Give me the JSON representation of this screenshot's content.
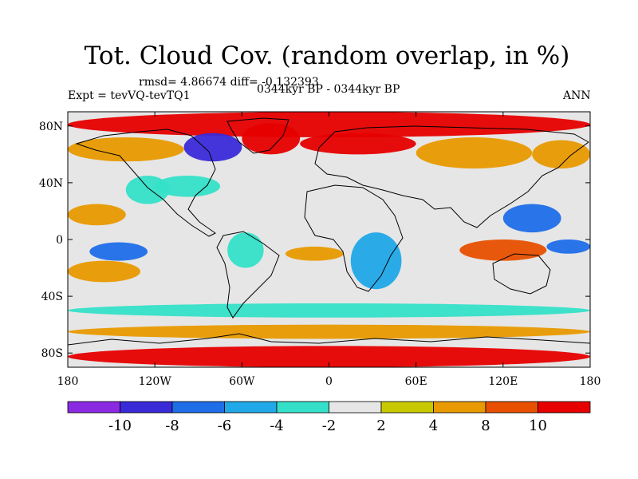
{
  "title": "Tot. Cloud Cov. (random overlap, in %)",
  "stats": "rmsd= 4.86674 diff= -0.132393",
  "expt": "Expt = tevVQ-tevTQ1",
  "period": "0344kyr BP - 0344kyr BP",
  "season": "ANN",
  "chart_data": {
    "type": "heatmap",
    "variable": "Total cloud cover difference (%)",
    "projection": "cylindrical equidistant",
    "xlim": [
      -180,
      180
    ],
    "ylim": [
      -90,
      90
    ],
    "x_ticks": [
      {
        "value": -180,
        "label": "180"
      },
      {
        "value": -120,
        "label": "120W"
      },
      {
        "value": -60,
        "label": "60W"
      },
      {
        "value": 0,
        "label": "0"
      },
      {
        "value": 60,
        "label": "60E"
      },
      {
        "value": 120,
        "label": "120E"
      },
      {
        "value": 180,
        "label": "180"
      }
    ],
    "y_ticks": [
      {
        "value": 80,
        "label": "80N"
      },
      {
        "value": 40,
        "label": "40N"
      },
      {
        "value": 0,
        "label": "0"
      },
      {
        "value": -40,
        "label": "40S"
      },
      {
        "value": -80,
        "label": "80S"
      }
    ],
    "colorbar": {
      "levels": [
        -10,
        -8,
        -6,
        -4,
        -2,
        2,
        4,
        8,
        10
      ],
      "colors": [
        "#8a2be2",
        "#3a2bd8",
        "#1f6ee8",
        "#20a8e8",
        "#35e0c8",
        "#e6e6e6",
        "#c8c800",
        "#e89a00",
        "#e85000",
        "#e60000"
      ]
    },
    "regions": [
      {
        "lon": [
          -180,
          180
        ],
        "lat": [
          72,
          90
        ],
        "value": 10
      },
      {
        "lon": [
          -180,
          -100
        ],
        "lat": [
          55,
          72
        ],
        "value": 6
      },
      {
        "lon": [
          -100,
          -60
        ],
        "lat": [
          55,
          75
        ],
        "value": -10
      },
      {
        "lon": [
          -60,
          -20
        ],
        "lat": [
          60,
          82
        ],
        "value": 10
      },
      {
        "lon": [
          -20,
          60
        ],
        "lat": [
          60,
          75
        ],
        "value": 10
      },
      {
        "lon": [
          60,
          140
        ],
        "lat": [
          50,
          72
        ],
        "value": 4
      },
      {
        "lon": [
          140,
          180
        ],
        "lat": [
          50,
          70
        ],
        "value": 6
      },
      {
        "lon": [
          -140,
          -110
        ],
        "lat": [
          25,
          45
        ],
        "value": -3
      },
      {
        "lon": [
          -120,
          -75
        ],
        "lat": [
          30,
          45
        ],
        "value": -3
      },
      {
        "lon": [
          -180,
          -140
        ],
        "lat": [
          10,
          25
        ],
        "value": 6
      },
      {
        "lon": [
          120,
          160
        ],
        "lat": [
          5,
          25
        ],
        "value": -8
      },
      {
        "lon": [
          -165,
          -125
        ],
        "lat": [
          -15,
          -2
        ],
        "value": -8
      },
      {
        "lon": [
          -180,
          -130
        ],
        "lat": [
          -30,
          -15
        ],
        "value": 6
      },
      {
        "lon": [
          -70,
          -45
        ],
        "lat": [
          -20,
          5
        ],
        "value": -3
      },
      {
        "lon": [
          -30,
          10
        ],
        "lat": [
          -15,
          -5
        ],
        "value": 4
      },
      {
        "lon": [
          15,
          50
        ],
        "lat": [
          -35,
          5
        ],
        "value": -6
      },
      {
        "lon": [
          90,
          150
        ],
        "lat": [
          -15,
          0
        ],
        "value": 8
      },
      {
        "lon": [
          150,
          180
        ],
        "lat": [
          -10,
          0
        ],
        "value": -8
      },
      {
        "lon": [
          -180,
          180
        ],
        "lat": [
          -55,
          -45
        ],
        "value": -3
      },
      {
        "lon": [
          -180,
          180
        ],
        "lat": [
          -70,
          -60
        ],
        "value": 4
      },
      {
        "lon": [
          -180,
          180
        ],
        "lat": [
          -90,
          -75
        ],
        "value": 10
      }
    ]
  }
}
